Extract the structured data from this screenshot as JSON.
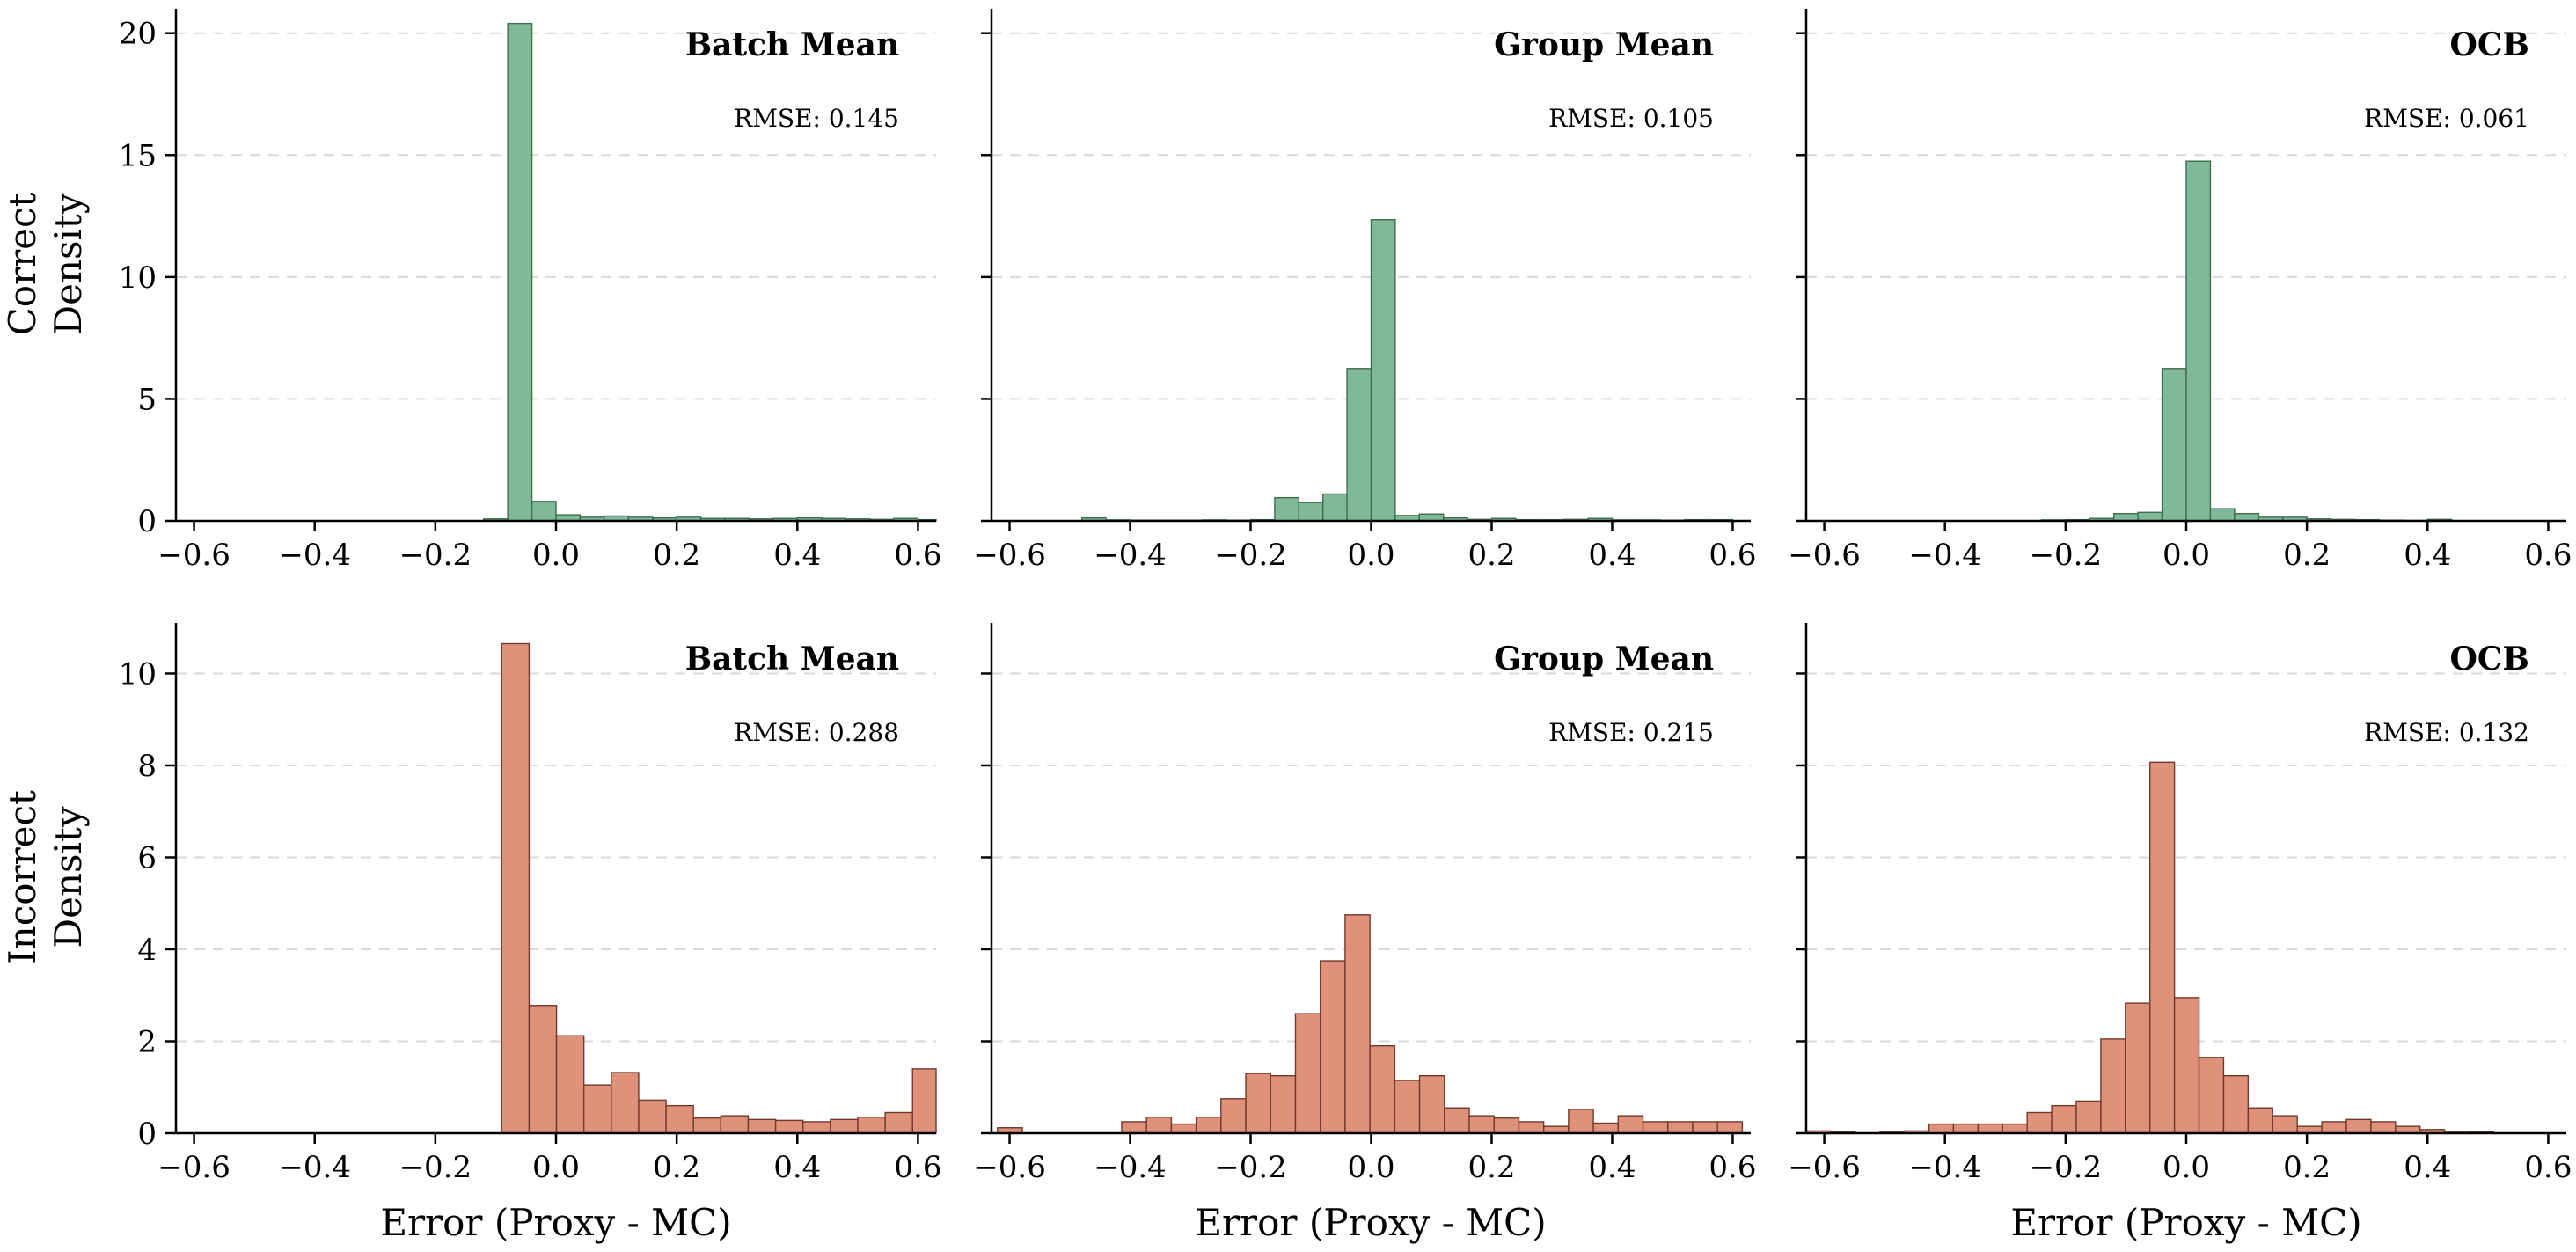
{
  "figure": {
    "row_labels": [
      {
        "line1": "Correct",
        "line2": "Density"
      },
      {
        "line1": "Incorrect",
        "line2": "Density"
      }
    ],
    "xlabel": "Error (Proxy - MC)"
  },
  "colors": {
    "correct_fill": "#80b997",
    "correct_edge": "#3f6b4e",
    "incorrect_fill": "#e0917a",
    "incorrect_edge": "#6e3a2c"
  },
  "chart_data": [
    {
      "type": "bar",
      "row": 0,
      "col": 0,
      "series": "Correct",
      "title": "Batch Mean",
      "annotation": "RMSE: 0.145",
      "xlim": [
        -0.63,
        0.63
      ],
      "ylim": [
        0,
        21
      ],
      "xticks": [
        -0.6,
        -0.4,
        -0.2,
        0.0,
        0.2,
        0.4,
        0.6
      ],
      "yticks": [
        0,
        5,
        10,
        15,
        20
      ],
      "xtick_labels": [
        "−0.6",
        "−0.4",
        "−0.2",
        "0.0",
        "0.2",
        "0.4",
        "0.6"
      ],
      "ytick_labels": [
        "0",
        "5",
        "10",
        "15",
        "20"
      ],
      "bin_width": 0.04,
      "bin_starts": [
        -0.12,
        -0.08,
        -0.04,
        0.0,
        0.04,
        0.08,
        0.12,
        0.16,
        0.2,
        0.24,
        0.28,
        0.32,
        0.36,
        0.4,
        0.44,
        0.48,
        0.52,
        0.56,
        0.6
      ],
      "values": [
        0.08,
        20.4,
        0.8,
        0.25,
        0.15,
        0.2,
        0.15,
        0.12,
        0.15,
        0.1,
        0.1,
        0.08,
        0.1,
        0.12,
        0.1,
        0.08,
        0.06,
        0.1,
        0.05
      ]
    },
    {
      "type": "bar",
      "row": 0,
      "col": 1,
      "series": "Correct",
      "title": "Group Mean",
      "annotation": "RMSE: 0.105",
      "xlim": [
        -0.63,
        0.63
      ],
      "ylim": [
        0,
        21
      ],
      "xticks": [
        -0.6,
        -0.4,
        -0.2,
        0.0,
        0.2,
        0.4,
        0.6
      ],
      "yticks": [
        0,
        5,
        10,
        15,
        20
      ],
      "xtick_labels": [
        "−0.6",
        "−0.4",
        "−0.2",
        "0.0",
        "0.2",
        "0.4",
        "0.6"
      ],
      "ytick_labels": [
        "0",
        "5",
        "10",
        "15",
        "20"
      ],
      "bin_width": 0.04,
      "bin_starts": [
        -0.48,
        -0.44,
        -0.4,
        -0.36,
        -0.32,
        -0.28,
        -0.24,
        -0.2,
        -0.16,
        -0.12,
        -0.08,
        -0.04,
        0.0,
        0.04,
        0.08,
        0.12,
        0.16,
        0.2,
        0.24,
        0.28,
        0.32,
        0.36,
        0.4,
        0.44,
        0.48,
        0.52,
        0.56
      ],
      "values": [
        0.12,
        0.04,
        0.03,
        0.03,
        0.03,
        0.04,
        0.03,
        0.05,
        0.95,
        0.75,
        1.1,
        6.25,
        12.35,
        0.22,
        0.28,
        0.12,
        0.06,
        0.1,
        0.05,
        0.05,
        0.06,
        0.1,
        0.04,
        0.04,
        0.03,
        0.05,
        0.05
      ]
    },
    {
      "type": "bar",
      "row": 0,
      "col": 2,
      "series": "Correct",
      "title": "OCB",
      "annotation": "RMSE: 0.061",
      "xlim": [
        -0.63,
        0.63
      ],
      "ylim": [
        0,
        21
      ],
      "xticks": [
        -0.6,
        -0.4,
        -0.2,
        0.0,
        0.2,
        0.4,
        0.6
      ],
      "yticks": [
        0,
        5,
        10,
        15,
        20
      ],
      "xtick_labels": [
        "−0.6",
        "−0.4",
        "−0.2",
        "0.0",
        "0.2",
        "0.4",
        "0.6"
      ],
      "ytick_labels": [
        "0",
        "5",
        "10",
        "15",
        "20"
      ],
      "bin_width": 0.04,
      "bin_starts": [
        -0.24,
        -0.2,
        -0.16,
        -0.12,
        -0.08,
        -0.04,
        0.0,
        0.04,
        0.08,
        0.12,
        0.16,
        0.2,
        0.24,
        0.28,
        0.32,
        0.36,
        0.4
      ],
      "values": [
        0.04,
        0.05,
        0.1,
        0.3,
        0.35,
        6.25,
        14.75,
        0.5,
        0.3,
        0.15,
        0.15,
        0.08,
        0.06,
        0.05,
        0.03,
        0.02,
        0.06
      ]
    },
    {
      "type": "bar",
      "row": 1,
      "col": 0,
      "series": "Incorrect",
      "title": "Batch Mean",
      "annotation": "RMSE: 0.288",
      "xlim": [
        -0.63,
        0.63
      ],
      "ylim": [
        0,
        11.1
      ],
      "xticks": [
        -0.6,
        -0.4,
        -0.2,
        0.0,
        0.2,
        0.4,
        0.6
      ],
      "yticks": [
        0,
        2,
        4,
        6,
        8,
        10
      ],
      "xtick_labels": [
        "−0.6",
        "−0.4",
        "−0.2",
        "0.0",
        "0.2",
        "0.4",
        "0.6"
      ],
      "ytick_labels": [
        "0",
        "2",
        "4",
        "6",
        "8",
        "10"
      ],
      "bin_width": 0.0454,
      "bin_starts": [
        -0.09,
        -0.0446,
        0.0008,
        0.0462,
        0.0916,
        0.137,
        0.1824,
        0.2278,
        0.2732,
        0.3186,
        0.364,
        0.4094,
        0.4548,
        0.5002,
        0.5456,
        0.591
      ],
      "values": [
        10.65,
        2.78,
        2.12,
        1.05,
        1.32,
        0.72,
        0.6,
        0.33,
        0.38,
        0.3,
        0.28,
        0.25,
        0.3,
        0.35,
        0.45,
        1.4
      ]
    },
    {
      "type": "bar",
      "row": 1,
      "col": 1,
      "series": "Incorrect",
      "title": "Group Mean",
      "annotation": "RMSE: 0.215",
      "xlim": [
        -0.63,
        0.63
      ],
      "ylim": [
        0,
        11.1
      ],
      "xticks": [
        -0.6,
        -0.4,
        -0.2,
        0.0,
        0.2,
        0.4,
        0.6
      ],
      "yticks": [
        0,
        2,
        4,
        6,
        8,
        10
      ],
      "xtick_labels": [
        "−0.6",
        "−0.4",
        "−0.2",
        "0.0",
        "0.2",
        "0.4",
        "0.6"
      ],
      "ytick_labels": [
        "0",
        "2",
        "4",
        "6",
        "8",
        "10"
      ],
      "bin_width": 0.0412,
      "bin_starts": [
        -0.62,
        -0.5788,
        -0.5376,
        -0.4964,
        -0.4552,
        -0.414,
        -0.3728,
        -0.3316,
        -0.2904,
        -0.2492,
        -0.208,
        -0.1668,
        -0.1256,
        -0.0844,
        -0.0432,
        -0.002,
        0.0392,
        0.0804,
        0.1216,
        0.1628,
        0.204,
        0.2452,
        0.2864,
        0.3276,
        0.3688,
        0.41,
        0.4512,
        0.4924,
        0.5336,
        0.5748
      ],
      "values": [
        0.12,
        0.0,
        0.0,
        0.0,
        0.0,
        0.25,
        0.35,
        0.2,
        0.35,
        0.75,
        1.3,
        1.25,
        2.6,
        3.75,
        4.75,
        1.9,
        1.15,
        1.25,
        0.55,
        0.38,
        0.33,
        0.25,
        0.15,
        0.52,
        0.22,
        0.38,
        0.25,
        0.25,
        0.25,
        0.25
      ]
    },
    {
      "type": "bar",
      "row": 1,
      "col": 2,
      "series": "Incorrect",
      "title": "OCB",
      "annotation": "RMSE: 0.132",
      "xlim": [
        -0.63,
        0.63
      ],
      "ylim": [
        0,
        11.1
      ],
      "xticks": [
        -0.6,
        -0.4,
        -0.2,
        0.0,
        0.2,
        0.4,
        0.6
      ],
      "yticks": [
        0,
        2,
        4,
        6,
        8,
        10
      ],
      "xtick_labels": [
        "−0.6",
        "−0.4",
        "−0.2",
        "0.0",
        "0.2",
        "0.4",
        "0.6"
      ],
      "ytick_labels": [
        "0",
        "2",
        "4",
        "6",
        "8",
        "10"
      ],
      "bin_width": 0.0407,
      "bin_starts": [
        -0.63,
        -0.5893,
        -0.5486,
        -0.5079,
        -0.4672,
        -0.4265,
        -0.3858,
        -0.3451,
        -0.3044,
        -0.2637,
        -0.223,
        -0.1823,
        -0.1416,
        -0.1009,
        -0.0602,
        -0.0195,
        0.0212,
        0.0619,
        0.1026,
        0.1433,
        0.184,
        0.2247,
        0.2654,
        0.3061,
        0.3468,
        0.3875,
        0.4282,
        0.4689
      ],
      "values": [
        0.05,
        0.03,
        0.0,
        0.04,
        0.05,
        0.2,
        0.2,
        0.2,
        0.2,
        0.45,
        0.6,
        0.7,
        2.05,
        2.83,
        8.07,
        2.95,
        1.65,
        1.25,
        0.55,
        0.38,
        0.15,
        0.25,
        0.3,
        0.25,
        0.15,
        0.08,
        0.04,
        0.03
      ]
    }
  ]
}
